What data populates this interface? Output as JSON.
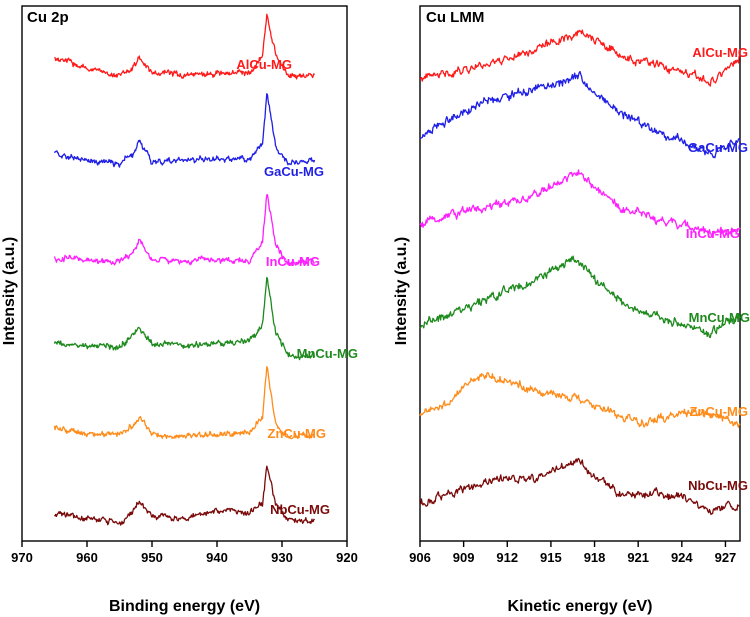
{
  "chart_data": [
    {
      "type": "line",
      "title": "Cu 2p",
      "xlabel": "Binding energy (eV)",
      "ylabel": "Intensity (a.u.)",
      "xlim": [
        970,
        920
      ],
      "x_ticks": [
        970,
        960,
        950,
        940,
        930,
        920
      ],
      "x_tick_labels": [
        "970",
        "960",
        "950",
        "940",
        "930",
        "920"
      ],
      "yticks_shown": false,
      "series": [
        {
          "name": "AlCu-MG",
          "color": "#ff1a1a",
          "x": [
            965,
            960,
            955,
            953,
            952,
            950,
            945,
            940,
            935,
            933,
            932.3,
            931,
            929,
            925
          ],
          "y": [
            0.55,
            0.3,
            0.15,
            0.3,
            0.55,
            0.2,
            0.15,
            0.18,
            0.2,
            0.6,
            1.6,
            0.6,
            0.12,
            0.15
          ]
        },
        {
          "name": "GaCu-MG",
          "color": "#1f1fe6",
          "x": [
            965,
            960,
            955,
            953,
            952,
            950,
            945,
            940,
            935,
            933,
            932.3,
            931,
            929,
            925
          ],
          "y": [
            0.35,
            0.18,
            0.1,
            0.3,
            0.65,
            0.15,
            0.2,
            0.22,
            0.22,
            0.6,
            1.8,
            0.5,
            0.1,
            0.2
          ]
        },
        {
          "name": "InCu-MG",
          "color": "#ff20ff",
          "x": [
            965,
            960,
            955,
            953,
            952,
            950,
            945,
            940,
            935,
            933,
            932.3,
            931,
            929,
            925
          ],
          "y": [
            0.15,
            0.12,
            0.08,
            0.25,
            0.6,
            0.12,
            0.1,
            0.1,
            0.12,
            0.55,
            1.7,
            0.45,
            0.05,
            0.08
          ]
        },
        {
          "name": "MnCu-MG",
          "color": "#1e8a1e",
          "x": [
            965,
            960,
            955,
            953,
            952,
            950,
            945,
            940,
            935,
            933,
            932.3,
            931,
            929,
            925
          ],
          "y": [
            0.35,
            0.3,
            0.25,
            0.5,
            0.75,
            0.35,
            0.3,
            0.35,
            0.4,
            0.8,
            1.9,
            0.6,
            0.05,
            0.05
          ]
        },
        {
          "name": "ZnCu-MG",
          "color": "#ff8c1a",
          "x": [
            965,
            960,
            955,
            953,
            952,
            950,
            945,
            940,
            935,
            933,
            932.3,
            931,
            929,
            925
          ],
          "y": [
            0.3,
            0.15,
            0.1,
            0.35,
            0.55,
            0.12,
            0.1,
            0.12,
            0.15,
            0.55,
            1.8,
            0.35,
            0.05,
            0.12
          ]
        },
        {
          "name": "NbCu-MG",
          "color": "#7a0a0a",
          "x": [
            965,
            960,
            955,
            953,
            952,
            950,
            945,
            940,
            935,
            933,
            932.3,
            931,
            929,
            925
          ],
          "y": [
            0.3,
            0.15,
            0.05,
            0.3,
            0.55,
            0.2,
            0.15,
            0.35,
            0.3,
            0.5,
            1.45,
            0.5,
            0.1,
            0.1
          ]
        }
      ]
    },
    {
      "type": "line",
      "title": "Cu LMM",
      "xlabel": "Kinetic energy (eV)",
      "ylabel": "Intensity (a.u.)",
      "xlim": [
        906,
        928
      ],
      "x_ticks": [
        906,
        909,
        912,
        915,
        918,
        921,
        924,
        927
      ],
      "x_tick_labels": [
        "906",
        "909",
        "912",
        "915",
        "918",
        "921",
        "924",
        "927"
      ],
      "yticks_shown": false,
      "series": [
        {
          "name": "AlCu-MG",
          "color": "#ff1a1a",
          "x": [
            906,
            908,
            910,
            912,
            914,
            916,
            917.2,
            918,
            920,
            922,
            924,
            926,
            928
          ],
          "y": [
            0.1,
            0.2,
            0.32,
            0.45,
            0.6,
            0.8,
            0.88,
            0.75,
            0.45,
            0.35,
            0.2,
            0.05,
            0.45
          ]
        },
        {
          "name": "GaCu-MG",
          "color": "#1f1fe6",
          "x": [
            906,
            908,
            910,
            912,
            914,
            916,
            917,
            918,
            920,
            922,
            924,
            926,
            928
          ],
          "y": [
            0.3,
            0.6,
            0.85,
            1.0,
            1.1,
            1.25,
            1.35,
            1.05,
            0.7,
            0.45,
            0.25,
            0.05,
            0.3
          ]
        },
        {
          "name": "InCu-MG",
          "color": "#ff20ff",
          "x": [
            906,
            908,
            910,
            912,
            914,
            916,
            916.8,
            918,
            920,
            922,
            924,
            926,
            928
          ],
          "y": [
            0.2,
            0.35,
            0.45,
            0.55,
            0.7,
            0.95,
            1.1,
            0.8,
            0.45,
            0.3,
            0.2,
            0.05,
            0.1
          ]
        },
        {
          "name": "MnCu-MG",
          "color": "#1e8a1e",
          "x": [
            906,
            908,
            910,
            912,
            914,
            916,
            916.7,
            918,
            920,
            922,
            924,
            926,
            928
          ],
          "y": [
            0.15,
            0.35,
            0.55,
            0.75,
            0.95,
            1.2,
            1.3,
            0.95,
            0.55,
            0.35,
            0.2,
            0.05,
            0.35
          ]
        },
        {
          "name": "ZnCu-MG",
          "color": "#ff8c1a",
          "x": [
            906,
            908,
            909.5,
            910.7,
            912,
            914,
            916,
            917,
            918,
            920,
            921.5,
            924,
            926,
            928
          ],
          "y": [
            0.15,
            0.35,
            0.7,
            0.8,
            0.7,
            0.55,
            0.45,
            0.4,
            0.3,
            0.1,
            0.0,
            0.2,
            0.15,
            0.0
          ]
        },
        {
          "name": "NbCu-MG",
          "color": "#7a0a0a",
          "x": [
            906,
            908,
            910,
            912,
            914,
            916,
            917,
            918,
            920,
            922,
            924,
            926,
            928
          ],
          "y": [
            0.1,
            0.3,
            0.45,
            0.55,
            0.55,
            0.75,
            0.85,
            0.55,
            0.25,
            0.3,
            0.25,
            0.0,
            0.1
          ]
        }
      ]
    }
  ]
}
